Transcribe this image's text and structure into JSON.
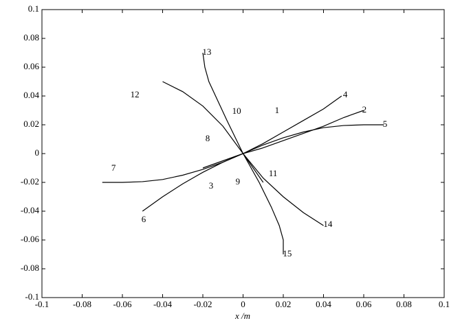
{
  "chart_data": {
    "type": "line",
    "xlabel": "x /m",
    "xlim": [
      -0.1,
      0.1
    ],
    "ylim": [
      -0.1,
      0.1
    ],
    "xticks": [
      -0.1,
      -0.08,
      -0.06,
      -0.04,
      -0.02,
      0,
      0.02,
      0.04,
      0.06,
      0.08,
      0.1
    ],
    "yticks": [
      -0.1,
      -0.08,
      -0.06,
      -0.04,
      -0.02,
      0,
      0.02,
      0.04,
      0.06,
      0.08,
      0.1
    ],
    "color": "#000000",
    "series": [
      {
        "x": [
          0,
          0.01,
          0.02,
          0.03,
          0.04,
          0.05,
          0.06,
          0.07
        ],
        "y": [
          0,
          0.006,
          0.011,
          0.015,
          0.018,
          0.0195,
          0.02,
          0.02
        ]
      },
      {
        "x": [
          0,
          -0.01,
          -0.02,
          -0.03,
          -0.04,
          -0.05,
          -0.06,
          -0.07
        ],
        "y": [
          0,
          -0.006,
          -0.011,
          -0.015,
          -0.018,
          -0.0195,
          -0.02,
          -0.02
        ]
      },
      {
        "x": [
          0,
          0.01,
          0.02,
          0.03,
          0.04,
          0.05,
          0.06
        ],
        "y": [
          0,
          0.004,
          0.009,
          0.014,
          0.019,
          0.025,
          0.03
        ]
      },
      {
        "x": [
          0,
          0.01,
          0.02,
          0.03,
          0.04,
          0.049
        ],
        "y": [
          0,
          0.007,
          0.015,
          0.023,
          0.031,
          0.04
        ]
      },
      {
        "x": [
          0,
          -0.01,
          -0.02,
          -0.03,
          -0.04,
          -0.05
        ],
        "y": [
          0,
          -0.006,
          -0.013,
          -0.021,
          -0.03,
          -0.04
        ]
      },
      {
        "x": [
          0,
          -0.02
        ],
        "y": [
          0,
          -0.01
        ]
      },
      {
        "x": [
          -0.04,
          -0.03,
          -0.02,
          -0.01,
          0
        ],
        "y": [
          0.05,
          0.043,
          0.033,
          0.019,
          0
        ]
      },
      {
        "x": [
          -0.02,
          -0.019,
          -0.017,
          -0.013,
          -0.008,
          0
        ],
        "y": [
          0.07,
          0.06,
          0.05,
          0.038,
          0.023,
          0
        ]
      },
      {
        "x": [
          0,
          0.01,
          0.02,
          0.03,
          0.04
        ],
        "y": [
          0,
          -0.017,
          -0.03,
          -0.041,
          -0.05
        ]
      },
      {
        "x": [
          0,
          0.008,
          0.014,
          0.018,
          0.02,
          0.02
        ],
        "y": [
          0,
          -0.02,
          -0.037,
          -0.05,
          -0.06,
          -0.07
        ]
      },
      {
        "x": [
          0,
          0.01
        ],
        "y": [
          0,
          -0.02
        ]
      }
    ],
    "annotations": [
      {
        "text": "1",
        "x": 0.0169,
        "y": 0.0295
      },
      {
        "text": "2",
        "x": 0.0603,
        "y": 0.03
      },
      {
        "text": "3",
        "x": -0.0159,
        "y": -0.0229
      },
      {
        "text": "4",
        "x": 0.0508,
        "y": 0.0405
      },
      {
        "text": "5",
        "x": 0.0706,
        "y": 0.02
      },
      {
        "text": "6",
        "x": -0.0494,
        "y": -0.0462
      },
      {
        "text": "7",
        "x": -0.0644,
        "y": -0.0105
      },
      {
        "text": "8",
        "x": -0.0176,
        "y": 0.01
      },
      {
        "text": "9",
        "x": -0.0026,
        "y": -0.02
      },
      {
        "text": "10",
        "x": -0.0032,
        "y": 0.029
      },
      {
        "text": "11",
        "x": 0.0149,
        "y": -0.0143
      },
      {
        "text": "12",
        "x": -0.0538,
        "y": 0.0405
      },
      {
        "text": "13",
        "x": -0.018,
        "y": 0.07
      },
      {
        "text": "14",
        "x": 0.0422,
        "y": -0.0495
      },
      {
        "text": "15",
        "x": 0.022,
        "y": -0.07
      }
    ]
  }
}
